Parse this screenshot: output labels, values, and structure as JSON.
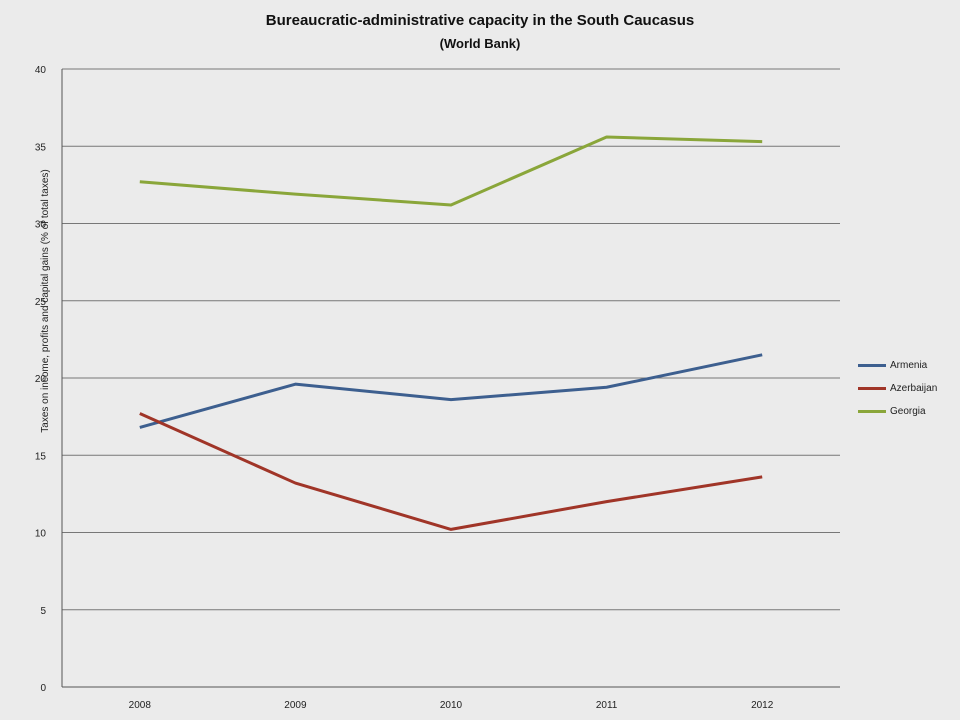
{
  "chart_data": {
    "type": "line",
    "title": "Bureaucratic-administrative capacity in the South Caucasus",
    "subtitle": "(World Bank)",
    "xlabel": "",
    "ylabel": "Taxes on income, profits and capital gains (% of total taxes)",
    "categories": [
      "2008",
      "2009",
      "2010",
      "2011",
      "2012"
    ],
    "ylim": [
      0,
      40
    ],
    "yticks": [
      0,
      5,
      10,
      15,
      20,
      25,
      30,
      35,
      40
    ],
    "grid": true,
    "legend_position": "right",
    "series": [
      {
        "name": "Armenia",
        "color": "#3d5f8f",
        "values": [
          16.8,
          19.6,
          18.6,
          19.4,
          21.5
        ]
      },
      {
        "name": "Azerbaijan",
        "color": "#a03528",
        "values": [
          17.7,
          13.2,
          10.2,
          12.0,
          13.6
        ]
      },
      {
        "name": "Georgia",
        "color": "#8aa63a",
        "values": [
          32.7,
          31.9,
          31.2,
          35.6,
          35.3
        ]
      }
    ]
  }
}
